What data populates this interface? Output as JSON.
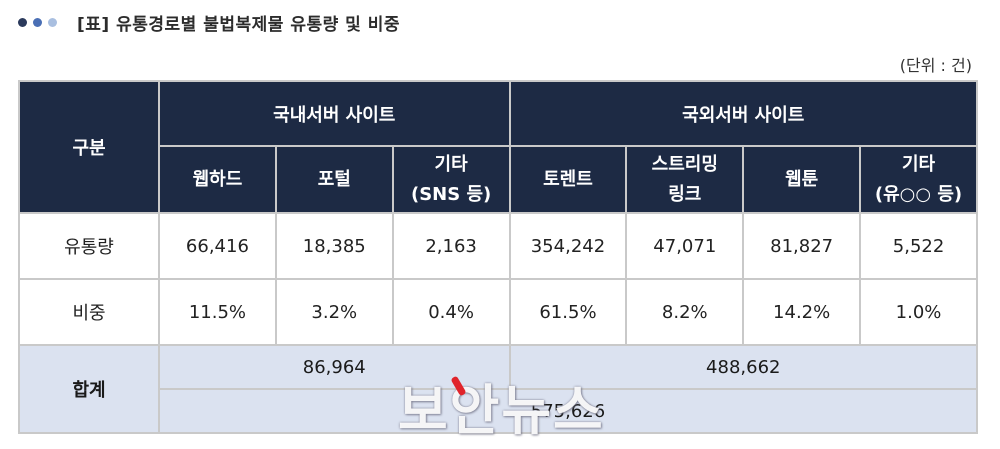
{
  "colors": {
    "dot_dark": "#2b3a5c",
    "dot_mid": "#4a6fb5",
    "dot_light": "#a9bfe0",
    "header_bg": "#1d2a44",
    "sum_bg": "#dbe2f0",
    "watermark_accent": "#e0242b"
  },
  "title": "[표]  유통경로별 불법복제물 유통량 및 비중",
  "unit": "(단위 : 건)",
  "table": {
    "corner_label": "구분",
    "group_domestic": "국내서버 사이트",
    "group_foreign": "국외서버 사이트",
    "columns": [
      {
        "line1": "웹하드",
        "line2": ""
      },
      {
        "line1": "포털",
        "line2": ""
      },
      {
        "line1": "기타",
        "line2": "(SNS 등)"
      },
      {
        "line1": "토렌트",
        "line2": ""
      },
      {
        "line1": "스트리밍",
        "line2": "링크"
      },
      {
        "line1": "웹툰",
        "line2": ""
      },
      {
        "line1": "기타",
        "line2": "(유○○ 등)"
      }
    ],
    "rows": [
      {
        "label": "유통량",
        "values": [
          "66,416",
          "18,385",
          "2,163",
          "354,242",
          "47,071",
          "81,827",
          "5,522"
        ]
      },
      {
        "label": "비중",
        "values": [
          "11.5%",
          "3.2%",
          "0.4%",
          "61.5%",
          "8.2%",
          "14.2%",
          "1.0%"
        ]
      }
    ],
    "total_label": "합계",
    "total_domestic": "86,964",
    "total_foreign": "488,662",
    "total_all": "575,626"
  },
  "watermark": "보안뉴스"
}
